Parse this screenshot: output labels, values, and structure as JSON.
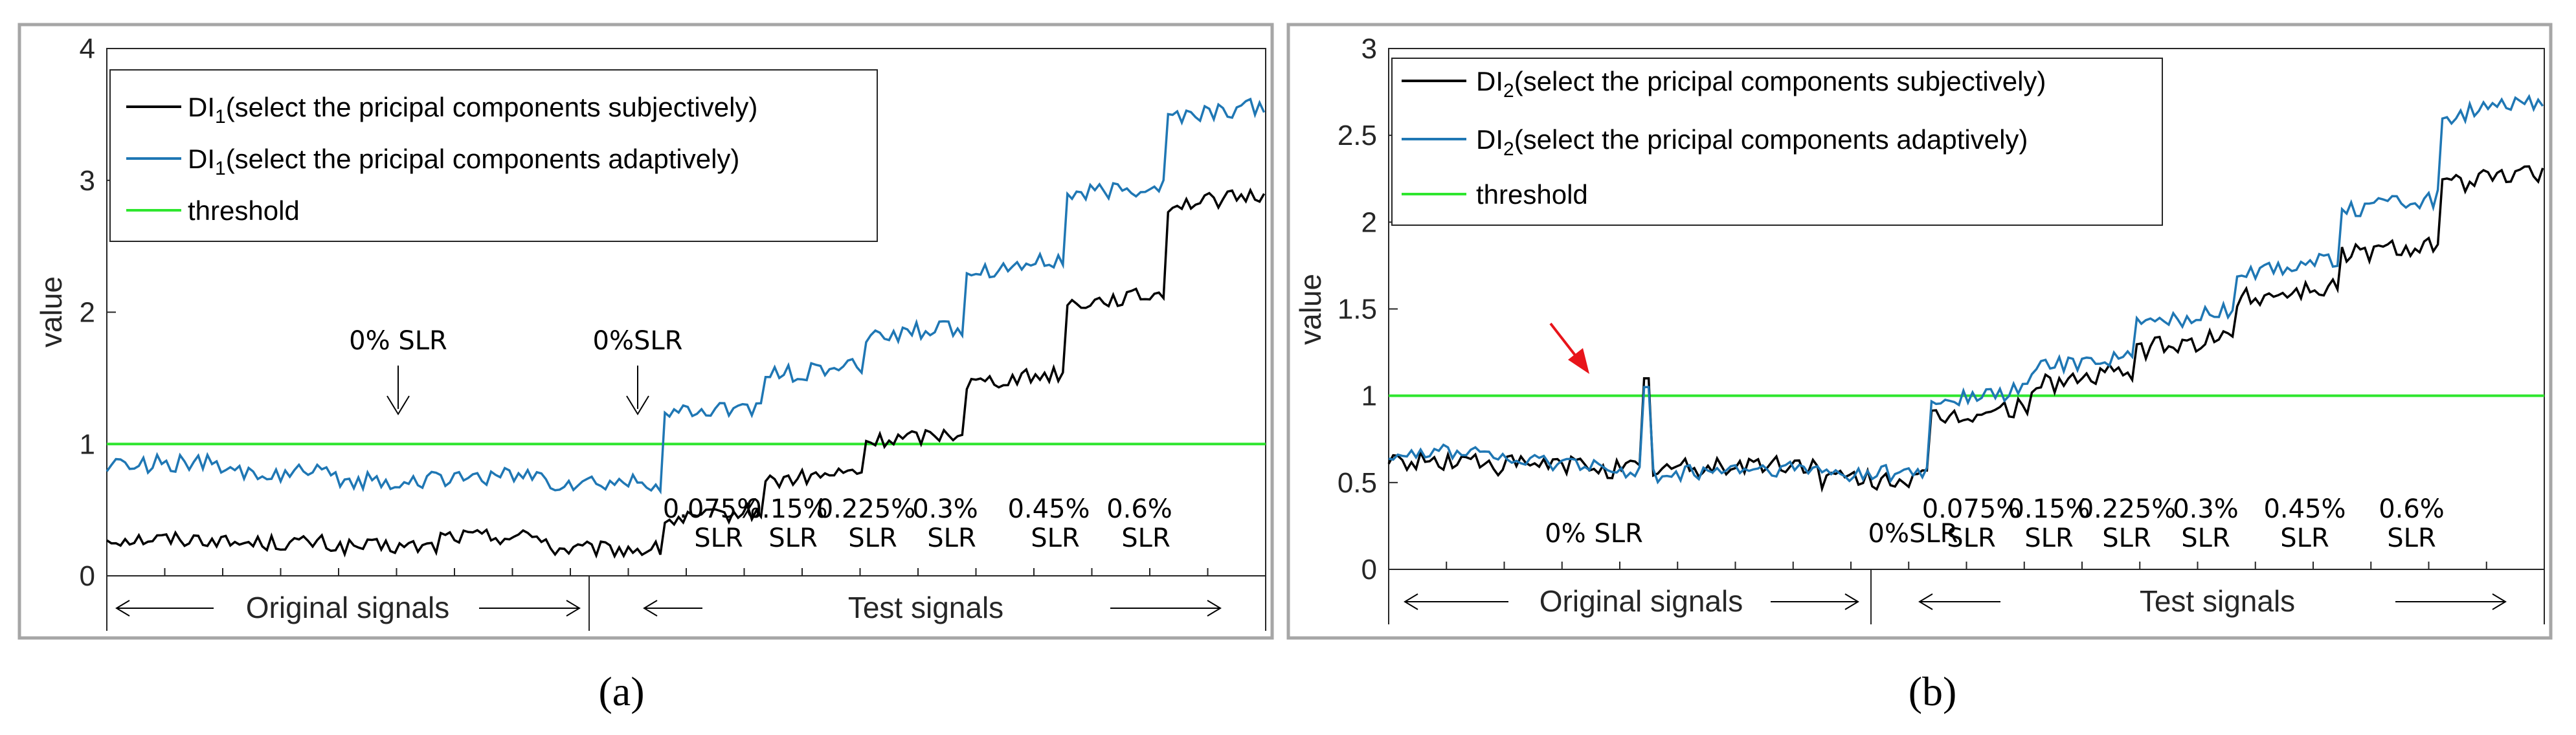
{
  "chart_data": [
    {
      "id": "a",
      "type": "line",
      "caption": "(a)",
      "ylabel": "value",
      "ylim": [
        0,
        4
      ],
      "yticks": [
        "0",
        "1",
        "2",
        "3",
        "4"
      ],
      "xlim": [
        0,
        380
      ],
      "threshold": 1.0,
      "legend": [
        {
          "base": "DI",
          "sub": "1",
          "rest": "(select the pricipal components subjectively)",
          "color": "#000000"
        },
        {
          "base": "DI",
          "sub": "1",
          "rest": "(select the pricipal components adaptively)",
          "color": "#1f77b4"
        },
        {
          "base": "threshold",
          "sub": "",
          "rest": "",
          "color": "#2ee62e"
        }
      ],
      "annotations": [
        "0% SLR",
        "0%SLR"
      ],
      "segment_labels": [
        {
          "top": "0.075%",
          "bottom": "SLR"
        },
        {
          "top": "0.15%",
          "bottom": "SLR"
        },
        {
          "top": "0.225%",
          "bottom": "SLR"
        },
        {
          "top": "0.3%",
          "bottom": "SLR"
        },
        {
          "top": "0.45%",
          "bottom": "SLR"
        },
        {
          "top": "0.6%",
          "bottom": "SLR"
        }
      ],
      "range_labels": [
        "Original signals",
        "Test signals"
      ],
      "series": [
        {
          "name": "DI1 subjectively",
          "color": "#000000",
          "levels": [
            0.28,
            0.25,
            0.22,
            0.3,
            0.2,
            0.45,
            0.75,
            1.05,
            1.5,
            2.1,
            2.85
          ],
          "noise": 0.06
        },
        {
          "name": "DI1 adaptively",
          "color": "#1f77b4",
          "levels": [
            0.85,
            0.78,
            0.72,
            0.75,
            0.7,
            1.25,
            1.55,
            1.85,
            2.35,
            2.92,
            3.52
          ],
          "noise": 0.07
        }
      ]
    },
    {
      "id": "b",
      "type": "line",
      "caption": "(b)",
      "ylabel": "value",
      "ylim": [
        0,
        3
      ],
      "yticks": [
        "0",
        "0.5",
        "1",
        "1.5",
        "2",
        "2.5",
        "3"
      ],
      "xlim": [
        0,
        380
      ],
      "threshold": 1.0,
      "legend": [
        {
          "base": "DI",
          "sub": "2",
          "rest": "(select the pricipal components subjectively)",
          "color": "#000000"
        },
        {
          "base": "DI",
          "sub": "2",
          "rest": "(select the pricipal components adaptively)",
          "color": "#1f77b4"
        },
        {
          "base": "threshold",
          "sub": "",
          "rest": "",
          "color": "#2ee62e"
        }
      ],
      "annotations": [
        "0% SLR",
        "0%SLR"
      ],
      "segment_labels": [
        {
          "top": "0.075%",
          "bottom": "SLR"
        },
        {
          "top": "0.15%",
          "bottom": "SLR"
        },
        {
          "top": "0.225%",
          "bottom": "SLR"
        },
        {
          "top": "0.3%",
          "bottom": "SLR"
        },
        {
          "top": "0.45%",
          "bottom": "SLR"
        },
        {
          "top": "0.6%",
          "bottom": "SLR"
        }
      ],
      "range_labels": [
        "Original signals",
        "Test signals"
      ],
      "peak": 1.1,
      "series": [
        {
          "name": "DI2 subjectively",
          "color": "#000000",
          "levels": [
            0.62,
            0.6,
            0.58,
            0.6,
            0.52,
            0.9,
            1.1,
            1.3,
            1.6,
            1.85,
            2.25
          ],
          "noise": 0.06
        },
        {
          "name": "DI2 adaptively",
          "color": "#1f77b4",
          "levels": [
            0.68,
            0.62,
            0.55,
            0.57,
            0.55,
            1.0,
            1.2,
            1.45,
            1.75,
            2.1,
            2.65
          ],
          "noise": 0.05
        }
      ]
    }
  ]
}
